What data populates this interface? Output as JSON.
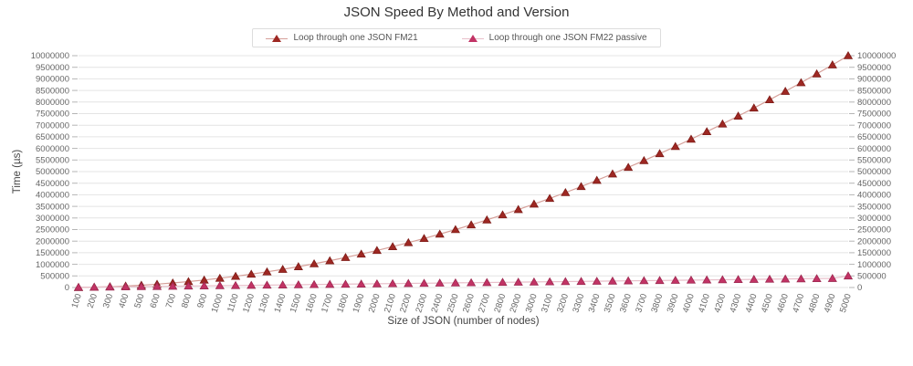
{
  "chart_data": {
    "type": "line",
    "title": "JSON Speed By Method and Version",
    "xlabel": "Size of JSON (number of nodes)",
    "ylabel": "Time (µs)",
    "legend_position": "top",
    "grid": true,
    "y_axis_sides": [
      "left",
      "right"
    ],
    "marker": "triangle",
    "ylim": [
      0,
      10000000
    ],
    "ytick_step": 500000,
    "ytick_labels": [
      "0",
      "500000",
      "1000000",
      "1500000",
      "2000000",
      "2500000",
      "3000000",
      "3500000",
      "4000000",
      "4500000",
      "5000000",
      "5500000",
      "6000000",
      "6500000",
      "7000000",
      "7500000",
      "8000000",
      "8500000",
      "9000000",
      "9500000",
      "10000000"
    ],
    "x": [
      100,
      200,
      300,
      400,
      500,
      600,
      700,
      800,
      900,
      1000,
      1100,
      1200,
      1300,
      1400,
      1500,
      1600,
      1700,
      1800,
      1900,
      2000,
      2100,
      2200,
      2300,
      2400,
      2500,
      2600,
      2700,
      2800,
      2900,
      3000,
      3100,
      3200,
      3300,
      3400,
      3500,
      3600,
      3700,
      3800,
      3900,
      4000,
      4100,
      4200,
      4300,
      4400,
      4500,
      4600,
      4700,
      4800,
      4900,
      5000
    ],
    "series": [
      {
        "name": "Loop through one JSON FM21",
        "marker_color": "#9e2823",
        "marker_edge_color": "#7d1b17",
        "line_color": "#d6a09a",
        "values": [
          4000,
          16000,
          36000,
          64000,
          100000,
          144000,
          196000,
          256000,
          324000,
          400000,
          484000,
          576000,
          676000,
          784000,
          900000,
          1024000,
          1156000,
          1296000,
          1444000,
          1600000,
          1764000,
          1936000,
          2116000,
          2304000,
          2500000,
          2704000,
          2916000,
          3136000,
          3364000,
          3600000,
          3844000,
          4096000,
          4356000,
          4624000,
          4900000,
          5184000,
          5476000,
          5776000,
          6084000,
          6400000,
          6724000,
          7056000,
          7396000,
          7744000,
          8100000,
          8464000,
          8836000,
          9216000,
          9604000,
          10000000
        ]
      },
      {
        "name": "Loop through one JSON FM22 passive",
        "marker_color": "#c23365",
        "marker_edge_color": "#9c2950",
        "line_color": "#e8bfca",
        "values": [
          8000,
          16000,
          24000,
          32000,
          40000,
          48000,
          56000,
          64000,
          72000,
          80000,
          88000,
          96000,
          104000,
          112000,
          120000,
          128000,
          136000,
          144000,
          152000,
          160000,
          168000,
          176000,
          184000,
          192000,
          200000,
          208000,
          216000,
          224000,
          232000,
          240000,
          248000,
          256000,
          264000,
          272000,
          280000,
          288000,
          296000,
          304000,
          312000,
          320000,
          328000,
          336000,
          344000,
          352000,
          360000,
          368000,
          376000,
          384000,
          392000,
          500000
        ]
      }
    ],
    "colors": {
      "gridline": "#e4e4e4",
      "tick_mark": "#b5b5b5",
      "tick_label": "#666666",
      "title_text": "#333333",
      "axis_title_text": "#444444"
    }
  }
}
